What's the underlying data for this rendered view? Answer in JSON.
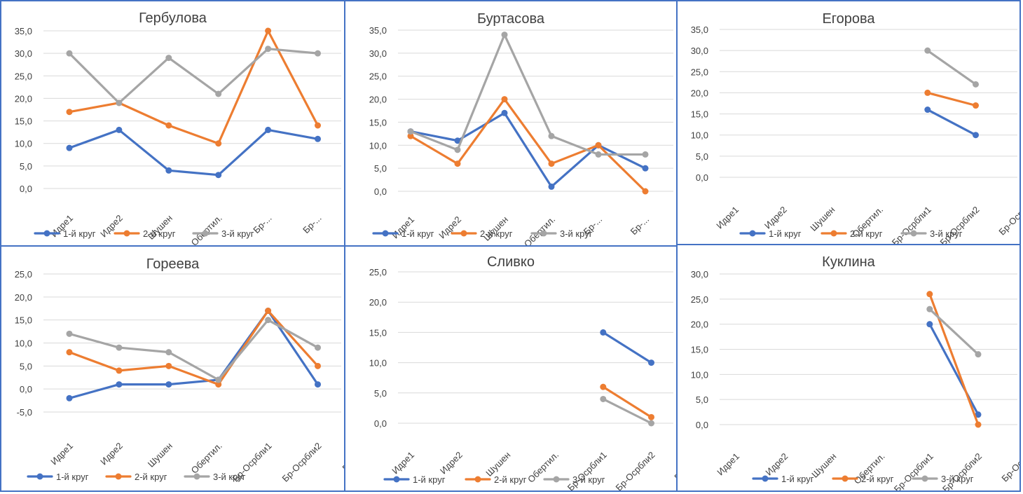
{
  "chart_data": [
    {
      "type": "line",
      "title": "Гербулова",
      "categories": [
        "Идре1",
        "Идре2",
        "Шушен",
        "Обертил.",
        "Бр-...",
        "Бр-..."
      ],
      "ylim": [
        0,
        35
      ],
      "yticks": [
        "0,0",
        "5,0",
        "10,0",
        "15,0",
        "20,0",
        "25,0",
        "30,0",
        "35,0"
      ],
      "series": [
        {
          "name": "1-й круг",
          "color": "#4472c4",
          "values": [
            9,
            13,
            4,
            3,
            13,
            11
          ]
        },
        {
          "name": "2-й круг",
          "color": "#ed7d31",
          "values": [
            17,
            19,
            14,
            10,
            35,
            14
          ]
        },
        {
          "name": "3-й круг",
          "color": "#a5a5a5",
          "values": [
            30,
            19,
            29,
            21,
            31,
            30
          ]
        }
      ],
      "legend": "bottom-left",
      "grid": true
    },
    {
      "type": "line",
      "title": "Буртасова",
      "categories": [
        "Идре1",
        "Идре2",
        "Шушен",
        "Обертил.",
        "Бр-...",
        "Бр-..."
      ],
      "ylim": [
        0,
        35
      ],
      "yticks": [
        "0,0",
        "5,0",
        "10,0",
        "15,0",
        "20,0",
        "25,0",
        "30,0",
        "35,0"
      ],
      "series": [
        {
          "name": "1-й круг",
          "color": "#4472c4",
          "values": [
            13,
            11,
            17,
            1,
            10,
            5
          ]
        },
        {
          "name": "2-й круг",
          "color": "#ed7d31",
          "values": [
            12,
            6,
            20,
            6,
            10,
            0
          ]
        },
        {
          "name": "3-й круг",
          "color": "#a5a5a5",
          "values": [
            13,
            9,
            34,
            12,
            8,
            8
          ]
        }
      ],
      "legend": "bottom-left",
      "grid": true
    },
    {
      "type": "line",
      "title": "Егорова",
      "categories": [
        "Идре1",
        "Идре2",
        "Шушен",
        "Обертил.",
        "Бр-Осрбли1",
        "Бр-Осрбли2",
        "Бр-Осрб"
      ],
      "ylim": [
        0,
        35
      ],
      "yticks": [
        "0,0",
        "5,0",
        "10,0",
        "15,0",
        "20,0",
        "25,0",
        "30,0",
        "35,0"
      ],
      "series": [
        {
          "name": "1-й круг",
          "color": "#4472c4",
          "values": [
            null,
            null,
            null,
            null,
            16,
            10,
            null
          ]
        },
        {
          "name": "2-й круг",
          "color": "#ed7d31",
          "values": [
            null,
            null,
            null,
            null,
            20,
            17,
            null
          ]
        },
        {
          "name": "3-й круг",
          "color": "#a5a5a5",
          "values": [
            null,
            null,
            null,
            null,
            30,
            22,
            null
          ]
        }
      ],
      "legend": "bottom-left",
      "grid": true
    },
    {
      "type": "line",
      "title": "Гореева",
      "categories": [
        "Идре1",
        "Идре2",
        "Шушен",
        "Обертил.",
        "Бр-Осрбли1",
        "Бр-Осрбли2",
        "Бр-Осрб"
      ],
      "ylim": [
        -5,
        25
      ],
      "yticks": [
        "-5,0",
        "0,0",
        "5,0",
        "10,0",
        "15,0",
        "20,0",
        "25,0"
      ],
      "negative_tick_color": "#ff0000",
      "series": [
        {
          "name": "1-й круг",
          "color": "#4472c4",
          "values": [
            -2,
            1,
            1,
            2,
            17,
            1,
            null
          ]
        },
        {
          "name": "2-й круг",
          "color": "#ed7d31",
          "values": [
            8,
            4,
            5,
            1,
            17,
            5,
            null
          ]
        },
        {
          "name": "3-й круг",
          "color": "#a5a5a5",
          "values": [
            12,
            9,
            8,
            2,
            15,
            9,
            null
          ]
        }
      ],
      "legend": "bottom-left",
      "grid": true
    },
    {
      "type": "line",
      "title": "Сливко",
      "categories": [
        "Идре1",
        "Идре2",
        "Шушен",
        "Обертил.",
        "Бр-Осрбли1",
        "Бр-Осрбли2",
        "Бр-Осрб"
      ],
      "ylim": [
        0,
        25
      ],
      "yticks": [
        "0,0",
        "5,0",
        "10,0",
        "15,0",
        "20,0",
        "25,0"
      ],
      "series": [
        {
          "name": "1-й круг",
          "color": "#4472c4",
          "values": [
            null,
            null,
            null,
            null,
            15,
            10,
            null
          ]
        },
        {
          "name": "2-й круг",
          "color": "#ed7d31",
          "values": [
            null,
            null,
            null,
            null,
            6,
            1,
            null
          ]
        },
        {
          "name": "3-й круг",
          "color": "#a5a5a5",
          "values": [
            null,
            null,
            null,
            null,
            4,
            0,
            null
          ]
        }
      ],
      "legend": "bottom-left",
      "grid": true
    },
    {
      "type": "line",
      "title": "Куклина",
      "categories": [
        "Идре1",
        "Идре2",
        "Шушен",
        "Обертил.",
        "Бр-Осрбли1",
        "Бр-Осрбли2",
        "Бр-Осрб"
      ],
      "ylim": [
        0,
        30
      ],
      "yticks": [
        "0,0",
        "5,0",
        "10,0",
        "15,0",
        "20,0",
        "25,0",
        "30,0"
      ],
      "series": [
        {
          "name": "1-й круг",
          "color": "#4472c4",
          "values": [
            null,
            null,
            null,
            null,
            20,
            2,
            null
          ]
        },
        {
          "name": "2-й круг",
          "color": "#ed7d31",
          "values": [
            null,
            null,
            null,
            null,
            26,
            0,
            null
          ]
        },
        {
          "name": "3-й круг",
          "color": "#a5a5a5",
          "values": [
            null,
            null,
            null,
            null,
            23,
            14,
            null
          ]
        }
      ],
      "legend": "bottom-left",
      "grid": true
    }
  ]
}
